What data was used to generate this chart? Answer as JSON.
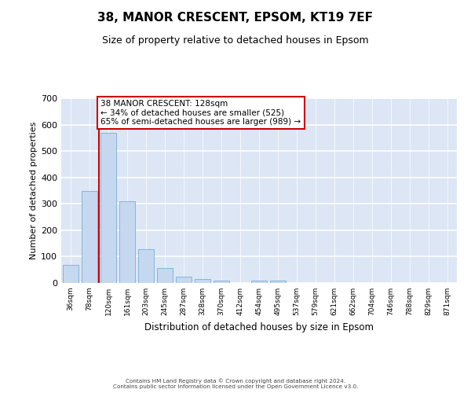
{
  "title_line1": "38, MANOR CRESCENT, EPSOM, KT19 7EF",
  "title_line2": "Size of property relative to detached houses in Epsom",
  "xlabel": "Distribution of detached houses by size in Epsom",
  "ylabel": "Number of detached properties",
  "bar_color": "#c5d8f0",
  "bar_edge_color": "#7aafd4",
  "background_color": "#dce6f5",
  "grid_color": "#ffffff",
  "categories": [
    "36sqm",
    "78sqm",
    "120sqm",
    "161sqm",
    "203sqm",
    "245sqm",
    "287sqm",
    "328sqm",
    "370sqm",
    "412sqm",
    "454sqm",
    "495sqm",
    "537sqm",
    "579sqm",
    "621sqm",
    "662sqm",
    "704sqm",
    "746sqm",
    "788sqm",
    "829sqm",
    "871sqm"
  ],
  "values": [
    68,
    350,
    570,
    310,
    128,
    57,
    25,
    15,
    8,
    0,
    10,
    10,
    0,
    0,
    0,
    0,
    0,
    0,
    0,
    0,
    0
  ],
  "ylim": [
    0,
    700
  ],
  "yticks": [
    0,
    100,
    200,
    300,
    400,
    500,
    600,
    700
  ],
  "red_line_x": 1.5,
  "annotation_text": "38 MANOR CRESCENT: 128sqm\n← 34% of detached houses are smaller (525)\n65% of semi-detached houses are larger (989) →",
  "annotation_box_color": "#ffffff",
  "red_line_color": "#cc0000",
  "footer_line1": "Contains HM Land Registry data © Crown copyright and database right 2024.",
  "footer_line2": "Contains public sector information licensed under the Open Government Licence v3.0."
}
